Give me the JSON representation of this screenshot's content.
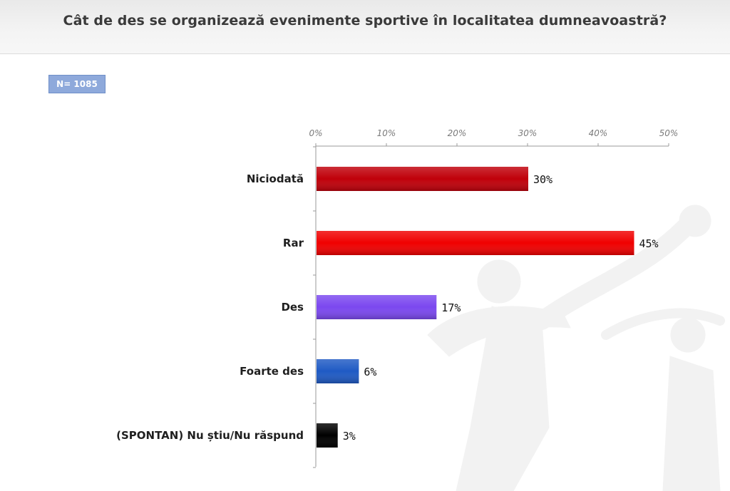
{
  "header": {
    "title": "Cât de des se organizează evenimente sportive în localitatea dumneavoastră?"
  },
  "sample_badge": "N= 1085",
  "chart_data": {
    "type": "bar",
    "orientation": "horizontal",
    "title": "Cât de des se organizează evenimente sportive în localitatea dumneavoastră?",
    "categories": [
      "Niciodată",
      "Rar",
      "Des",
      "Foarte des",
      "(SPONTAN) Nu știu/Nu răspund"
    ],
    "values": [
      30,
      45,
      17,
      6,
      3
    ],
    "value_labels": [
      "30%",
      "45%",
      "17%",
      "6%",
      "3%"
    ],
    "bar_colors": [
      "#c0000a",
      "#f00000",
      "#7b48ef",
      "#1f5ac4",
      "#000000"
    ],
    "xlim": [
      0,
      50
    ],
    "x_ticks": [
      0,
      10,
      20,
      30,
      40,
      50
    ],
    "x_tick_labels": [
      "0%",
      "10%",
      "20%",
      "30%",
      "40%",
      "50%"
    ],
    "x_axis_position": "top",
    "grid": false,
    "legend": "none"
  }
}
